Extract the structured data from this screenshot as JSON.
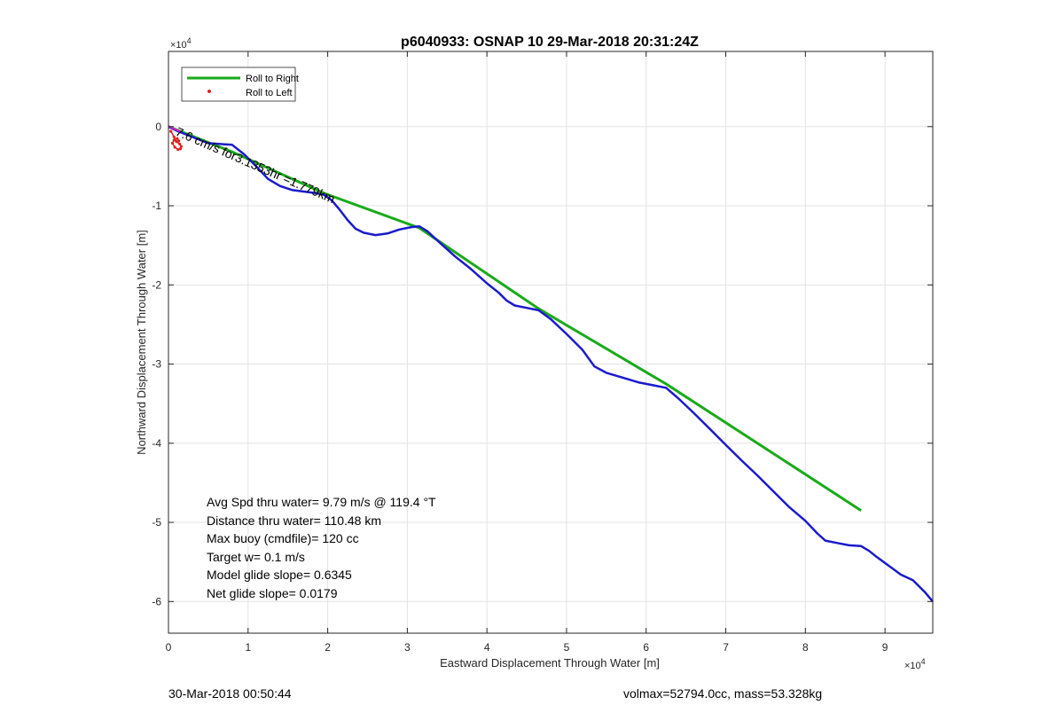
{
  "chart_data": {
    "type": "line",
    "title": "p6040933: OSNAP 10 29-Mar-2018 20:31:24Z",
    "xlabel": "Eastward Displacement Through Water [m]",
    "ylabel": "Northward Displacement Through Water [m]",
    "x_multiplier": "×10",
    "x_multiplier_exp": "4",
    "y_multiplier": "×10",
    "y_multiplier_exp": "4",
    "xlim": [
      0,
      96000
    ],
    "ylim": [
      -64000,
      9500
    ],
    "grid": true,
    "x_ticks": [
      0,
      10000,
      20000,
      30000,
      40000,
      50000,
      60000,
      70000,
      80000,
      90000
    ],
    "x_tick_labels": [
      "0",
      "1",
      "2",
      "3",
      "4",
      "5",
      "6",
      "7",
      "8",
      "9"
    ],
    "y_ticks": [
      0,
      -10000,
      -20000,
      -30000,
      -40000,
      -50000,
      -60000
    ],
    "y_tick_labels": [
      "0",
      "-1",
      "-2",
      "-3",
      "-4",
      "-5",
      "-6"
    ],
    "legend_position": "top-left",
    "series": [
      {
        "name": "Roll to Right",
        "color": "#1aaa1a",
        "x": [
          0,
          8000,
          19500,
          31500,
          46500,
          62500,
          87000
        ],
        "y": [
          0,
          -3200,
          -8400,
          -12800,
          -23000,
          -32500,
          -48500
        ]
      },
      {
        "name": "Roll to Left",
        "color": "#e02020",
        "x": [
          300,
          700,
          1000,
          1400,
          1600,
          1500,
          1200,
          800,
          500,
          700,
          1100,
          1300
        ],
        "y": [
          -600,
          -1300,
          -1900,
          -2200,
          -2500,
          -2800,
          -2900,
          -2600,
          -2100,
          -1700,
          -1500,
          -1800
        ]
      },
      {
        "name": "",
        "color": "#1a1acc",
        "x": [
          0,
          1000,
          2500,
          4000,
          5000,
          6500,
          8000,
          9500,
          11000,
          12500,
          14000,
          15500,
          17000,
          18500,
          19500,
          20500,
          21500,
          22500,
          23500,
          24500,
          26000,
          27500,
          29000,
          30500,
          31500,
          32500,
          34000,
          36000,
          38000,
          40000,
          41500,
          42500,
          43500,
          45000,
          46500,
          48000,
          50000,
          52000,
          53500,
          55000,
          57000,
          59000,
          61000,
          62500,
          64000,
          66000,
          68000,
          70000,
          72000,
          74000,
          76000,
          78000,
          80000,
          81500,
          82500,
          84000,
          85500,
          87000,
          88000,
          89000,
          90500,
          92000,
          93500,
          95000,
          96000
        ],
        "y": [
          0,
          -500,
          -1100,
          -1700,
          -2100,
          -2200,
          -2300,
          -3500,
          -5000,
          -6600,
          -7500,
          -8000,
          -8200,
          -8400,
          -8600,
          -9300,
          -10500,
          -11800,
          -12900,
          -13400,
          -13700,
          -13500,
          -13000,
          -12700,
          -12600,
          -13200,
          -14600,
          -16400,
          -18000,
          -19800,
          -21000,
          -22000,
          -22600,
          -22900,
          -23200,
          -24300,
          -26200,
          -28200,
          -30300,
          -31100,
          -31700,
          -32300,
          -32700,
          -33000,
          -34300,
          -36200,
          -38200,
          -40200,
          -42200,
          -44100,
          -46100,
          -48100,
          -49800,
          -51400,
          -52300,
          -52600,
          -52900,
          -53000,
          -53600,
          -54400,
          -55500,
          -56600,
          -57300,
          -58800,
          -60000
        ]
      }
    ],
    "annotation": "7.6 cm/s for3.1353hr =1.779km"
  },
  "stats": {
    "lines": [
      "Avg Spd thru water=  9.79 m/s @ 119.4 °T",
      "Distance thru water= 110.48 km",
      "Max buoy (cmdfile)= 120 cc",
      "Target w= 0.1 m/s",
      "Model glide slope= 0.6345",
      "Net glide slope= 0.0179"
    ]
  },
  "footer": {
    "left": "30-Mar-2018 00:50:44",
    "right": "volmax=52794.0cc, mass=53.328kg"
  }
}
